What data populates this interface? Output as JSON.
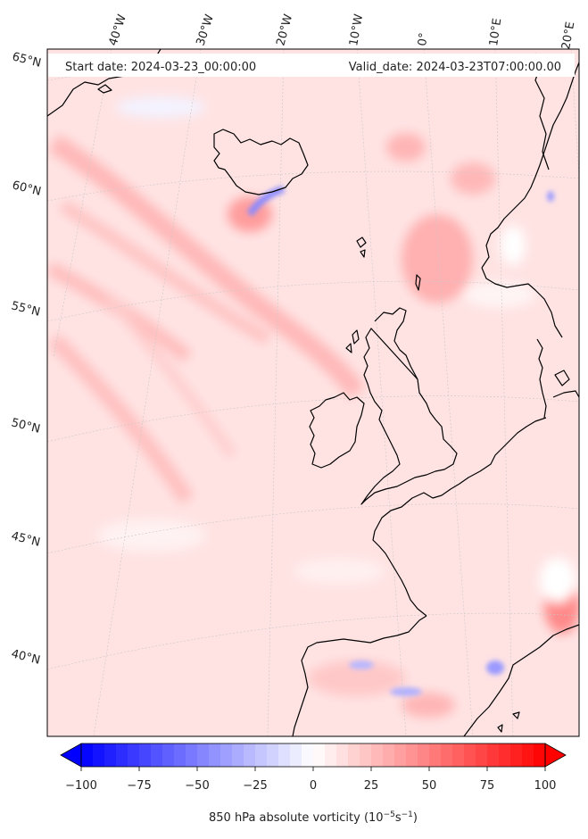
{
  "header": {
    "start_date": "Start date: 2024-03-23_00:00:00",
    "valid_date": "Valid_date: 2024-03-23T07:00:00.00"
  },
  "lon_labels": [
    "40°W",
    "30°W",
    "20°W",
    "10°W",
    "0°",
    "10°E",
    "20°E"
  ],
  "lat_labels": [
    "65°N",
    "60°N",
    "55°N",
    "50°N",
    "45°N",
    "40°N"
  ],
  "colorbar": {
    "ticks": [
      "−100",
      "−75",
      "−50",
      "−25",
      "0",
      "25",
      "50",
      "75",
      "100"
    ],
    "min": -100,
    "max": 100,
    "step": 5,
    "label_main": "850 hPa absolute vorticity (10",
    "label_exp1": "−5",
    "label_mid": "s",
    "label_exp2": "−1",
    "label_end": ")"
  },
  "colors": {
    "negative": "#0000ff",
    "zero": "#ffffff",
    "positive": "#ff0000",
    "coastline": "#000000"
  }
}
